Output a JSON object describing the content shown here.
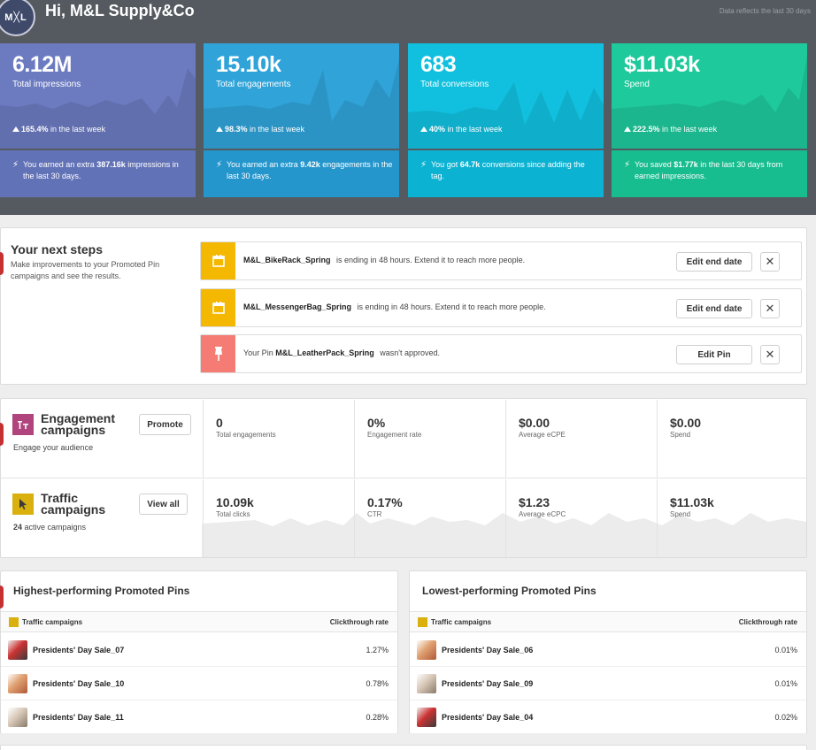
{
  "header": {
    "logo_text": "M╳L",
    "greeting": "Hi, M&L Supply&Co",
    "data_note": "Data reflects the last 30 days"
  },
  "stat_cards": [
    {
      "value": "6.12M",
      "label": "Total impressions",
      "change": "165.4%",
      "change_suffix": " in the last week",
      "note_pre": "You earned an extra ",
      "note_bold": "387.16k",
      "note_post": " impressions in the last 30 days.",
      "color_top": "#6c7bc0",
      "color_bottom": "#6272b6"
    },
    {
      "value": "15.10k",
      "label": "Total engagements",
      "change": "98.3%",
      "change_suffix": " in the last week",
      "note_pre": "You earned an extra ",
      "note_bold": "9.42k",
      "note_post": " engagements in the last 30 days.",
      "color_top": "#30a3d9",
      "color_bottom": "#2596cc"
    },
    {
      "value": "683",
      "label": "Total conversions",
      "change": "40%",
      "change_suffix": " in the last week",
      "note_pre": "You got ",
      "note_bold": "64.7k",
      "note_post": " conversions since adding the tag.",
      "color_top": "#11c0de",
      "color_bottom": "#0cb2d2"
    },
    {
      "value": "$11.03k",
      "label": "Spend",
      "change": "222.5%",
      "change_suffix": " in the last week",
      "note_pre": "You saved ",
      "note_bold": "$1.77k",
      "note_post": " in the last 30 days from earned impressions.",
      "color_top": "#1ec99b",
      "color_bottom": "#17bc8f"
    }
  ],
  "next_steps": {
    "title": "Your next steps",
    "description": "Make improvements to your Promoted Pin campaigns and see the results.",
    "alerts": [
      {
        "icon": "calendar-icon",
        "color": "#f5b800",
        "name": "M&L_BikeRack_Spring",
        "text_pre": "",
        "text_post": " is ending in 48 hours. Extend it to reach more people.",
        "button": "Edit end date"
      },
      {
        "icon": "calendar-icon",
        "color": "#f5b800",
        "name": "M&L_MessengerBag_Spring",
        "text_pre": "",
        "text_post": " is ending in 48 hours. Extend it to reach more people.",
        "button": "Edit end date"
      },
      {
        "icon": "pin-icon",
        "color": "#f47c74",
        "name": "M&L_LeatherPack_Spring",
        "text_pre": "Your Pin ",
        "text_post": " wasn't approved.",
        "button": "Edit Pin"
      }
    ],
    "close_glyph": "✕"
  },
  "campaigns": [
    {
      "title_line1": "Engagement",
      "title_line2": "campaigns",
      "subtitle_bold": "",
      "subtitle": "Engage your audience",
      "button": "Promote",
      "icon_color": "#b0457d",
      "metrics": [
        {
          "value": "0",
          "label": "Total engagements"
        },
        {
          "value": "0%",
          "label": "Engagement rate"
        },
        {
          "value": "$0.00",
          "label": "Average eCPE"
        },
        {
          "value": "$0.00",
          "label": "Spend"
        }
      ]
    },
    {
      "title_line1": "Traffic",
      "title_line2": "campaigns",
      "subtitle_bold": "24",
      "subtitle": " active campaigns",
      "button": "View all",
      "icon_color": "#d9b00d",
      "metrics": [
        {
          "value": "10.09k",
          "label": "Total clicks"
        },
        {
          "value": "0.17%",
          "label": "CTR"
        },
        {
          "value": "$1.23",
          "label": "Average eCPC"
        },
        {
          "value": "$11.03k",
          "label": "Spend"
        }
      ]
    }
  ],
  "highest": {
    "title": "Highest-performing Promoted Pins",
    "col_left": "Traffic campaigns",
    "col_right": "Clickthrough rate",
    "rows": [
      {
        "name": "Presidents' Day Sale_07",
        "rate": "1.27%"
      },
      {
        "name": "Presidents' Day Sale_10",
        "rate": "0.78%"
      },
      {
        "name": "Presidents' Day Sale_11",
        "rate": "0.28%"
      }
    ]
  },
  "lowest": {
    "title": "Lowest-performing Promoted Pins",
    "col_left": "Traffic campaigns",
    "col_right": "Clickthrough rate",
    "rows": [
      {
        "name": "Presidents' Day Sale_06",
        "rate": "0.01%"
      },
      {
        "name": "Presidents' Day Sale_09",
        "rate": "0.01%"
      },
      {
        "name": "Presidents' Day Sale_04",
        "rate": "0.02%"
      }
    ]
  }
}
